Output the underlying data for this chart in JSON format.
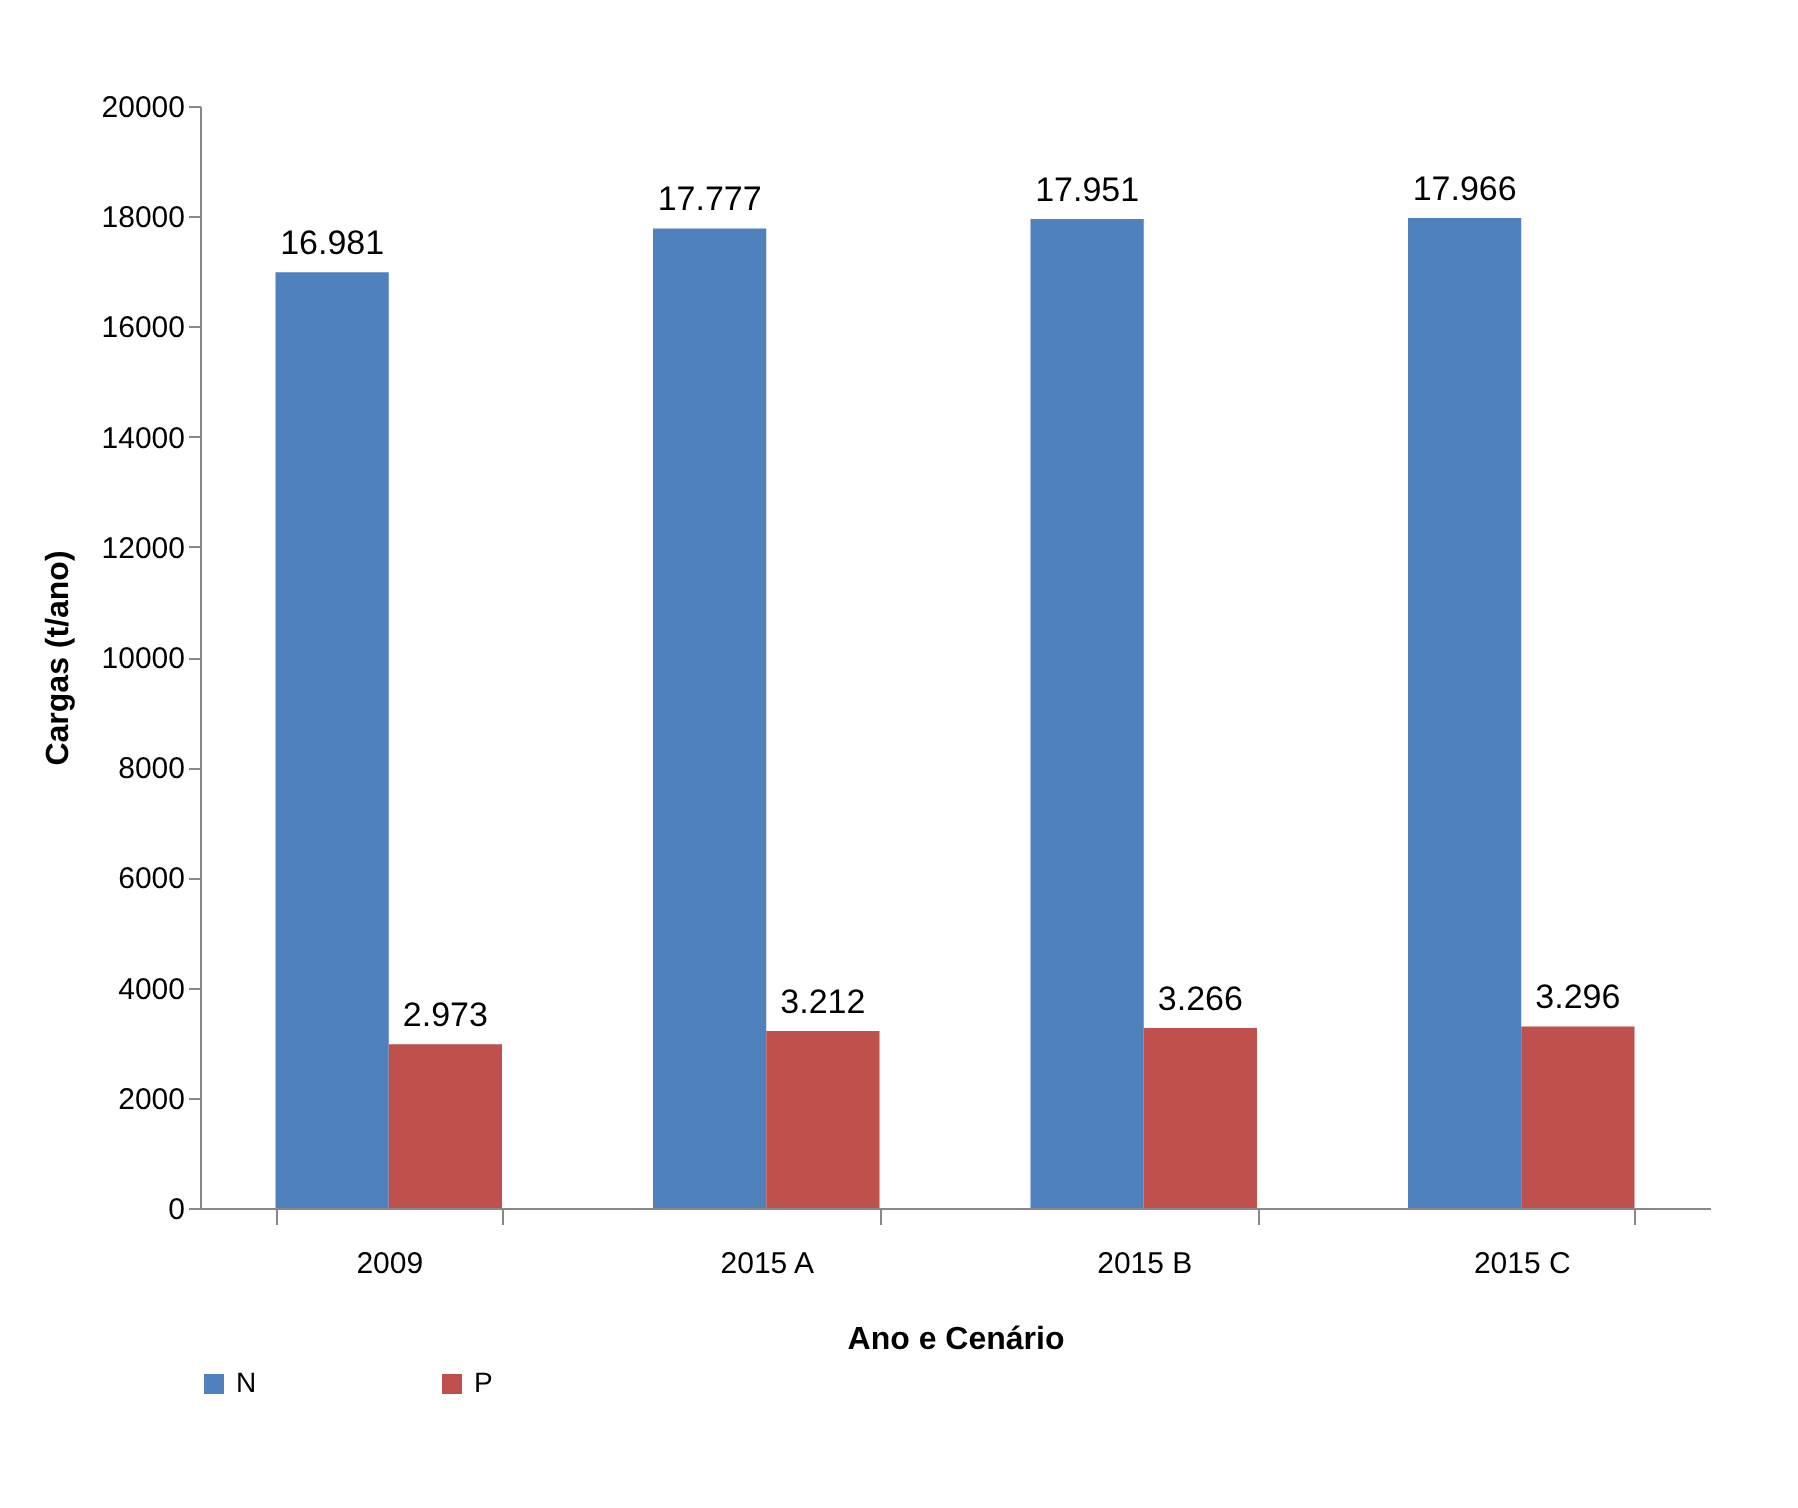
{
  "chart_data": {
    "type": "bar",
    "xlabel": "Ano e Cenário",
    "ylabel": "Cargas (t/ano)",
    "categories": [
      "2009",
      "2015 A",
      "2015 B",
      "2015 C"
    ],
    "series": [
      {
        "name": "N",
        "color": "#4f81bd",
        "values": [
          16981,
          17777,
          17951,
          17966
        ],
        "value_labels": [
          "16.981",
          "17.777",
          "17.951",
          "17.966"
        ]
      },
      {
        "name": "P",
        "color": "#c0504d",
        "values": [
          2973,
          3212,
          3266,
          3296
        ],
        "value_labels": [
          "2.973",
          "3.212",
          "3.266",
          "3.296"
        ]
      }
    ],
    "ylim": [
      0,
      20000
    ],
    "yticks": [
      0,
      2000,
      4000,
      6000,
      8000,
      10000,
      12000,
      14000,
      16000,
      18000,
      20000
    ],
    "grid": false,
    "legend": "bottom"
  }
}
